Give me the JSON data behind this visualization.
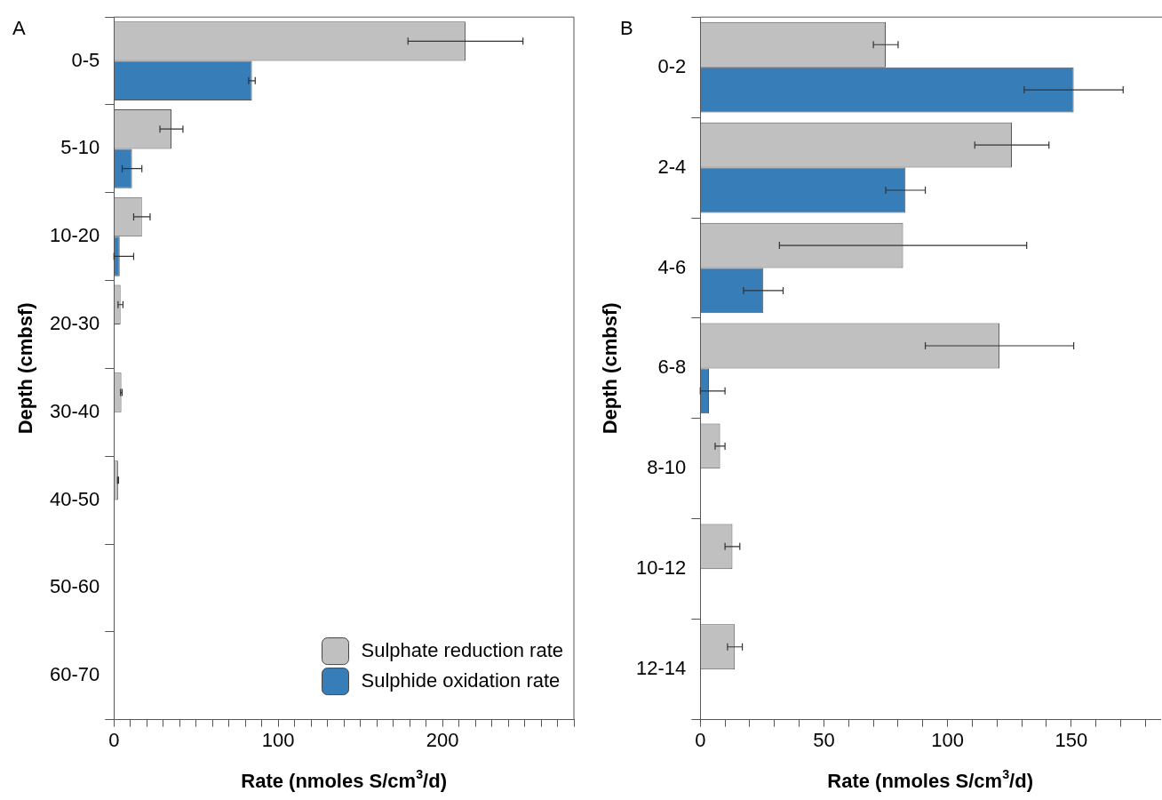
{
  "chart_data": [
    {
      "type": "bar",
      "orientation": "horizontal",
      "title": "A",
      "xlabel": "Rate (nmoles S/cm$^{3}$/d)",
      "ylabel": "Depth (cmbsf)",
      "categories": [
        "0-5",
        "5-10",
        "10-20",
        "20-30",
        "30-40",
        "40-50",
        "50-60",
        "60-70"
      ],
      "series": [
        {
          "name": "Sulphate reduction rate",
          "color": "#c0c0c0",
          "values": [
            214,
            35,
            17,
            4,
            4.5,
            2.5,
            null,
            null
          ],
          "errors": [
            35,
            7,
            5,
            1.5,
            0.5,
            0.3,
            null,
            null
          ]
        },
        {
          "name": "Sulphide oxidation rate",
          "color": "#377db8",
          "values": [
            84,
            11,
            3.5,
            null,
            null,
            null,
            null,
            null
          ],
          "errors": [
            2,
            6,
            [
              0,
              12
            ],
            null,
            null,
            null,
            null,
            null
          ]
        }
      ],
      "xlim": [
        0,
        280
      ],
      "xticks": [
        0,
        {
          "value": 10,
          "label": null
        },
        {
          "value": 20,
          "label": null
        },
        {
          "value": 30,
          "label": null
        },
        {
          "value": 40,
          "label": null
        },
        {
          "value": 50,
          "label": null
        },
        {
          "value": 60,
          "label": null
        },
        {
          "value": 70,
          "label": null
        },
        {
          "value": 80,
          "label": null
        },
        {
          "value": 90,
          "label": null
        },
        100,
        {
          "value": 110,
          "label": null
        },
        {
          "value": 120,
          "label": null
        },
        {
          "value": 130,
          "label": null
        },
        {
          "value": 140,
          "label": null
        },
        {
          "value": 150,
          "label": null
        },
        {
          "value": 160,
          "label": null
        },
        {
          "value": 170,
          "label": null
        },
        {
          "value": 180,
          "label": null
        },
        {
          "value": 190,
          "label": null
        },
        200,
        {
          "value": 210,
          "label": null
        },
        {
          "value": 220,
          "label": null
        },
        {
          "value": 230,
          "label": null
        },
        {
          "value": 240,
          "label": null
        },
        {
          "value": 250,
          "label": null
        },
        {
          "value": 260,
          "label": null
        },
        {
          "value": 270,
          "label": null
        },
        {
          "value": 280,
          "label": null
        }
      ],
      "legend": "bottom right",
      "grid": false
    },
    {
      "type": "bar",
      "orientation": "horizontal",
      "title": "B",
      "xlabel": "Rate (nmoles S/cm$^{3}$/d)",
      "ylabel": "Depth (cmbsf)",
      "categories": [
        "0-2",
        "2-4",
        "4-6",
        "6-8",
        "8-10",
        "10-12",
        "12-14"
      ],
      "series": [
        {
          "color": "#c0c0c0",
          "values": [
            75,
            126,
            82,
            121,
            8,
            13,
            14
          ],
          "errors": [
            5,
            15,
            50,
            30,
            2,
            3,
            3
          ]
        },
        {
          "color": "#377db8",
          "values": [
            151,
            83,
            25.5,
            3.5,
            null,
            null,
            null
          ],
          "errors": [
            20,
            8,
            8,
            [
              0,
              10
            ],
            null,
            null,
            null
          ]
        }
      ],
      "xlim": [
        0,
        186
      ],
      "xticks": [
        0,
        {
          "value": 10,
          "label": null
        },
        {
          "value": 20,
          "label": null
        },
        {
          "value": 30,
          "label": null
        },
        {
          "value": 40,
          "label": null
        },
        50,
        {
          "value": 60,
          "label": null
        },
        {
          "value": 70,
          "label": null
        },
        {
          "value": 80,
          "label": null
        },
        {
          "value": 90,
          "label": null
        },
        100,
        {
          "value": 110,
          "label": null
        },
        {
          "value": 120,
          "label": null
        },
        {
          "value": 130,
          "label": null
        },
        {
          "value": 140,
          "label": null
        },
        150,
        {
          "value": 160,
          "label": null
        },
        {
          "value": 170,
          "label": null
        },
        {
          "value": 180,
          "label": null
        }
      ],
      "grid": false
    }
  ]
}
